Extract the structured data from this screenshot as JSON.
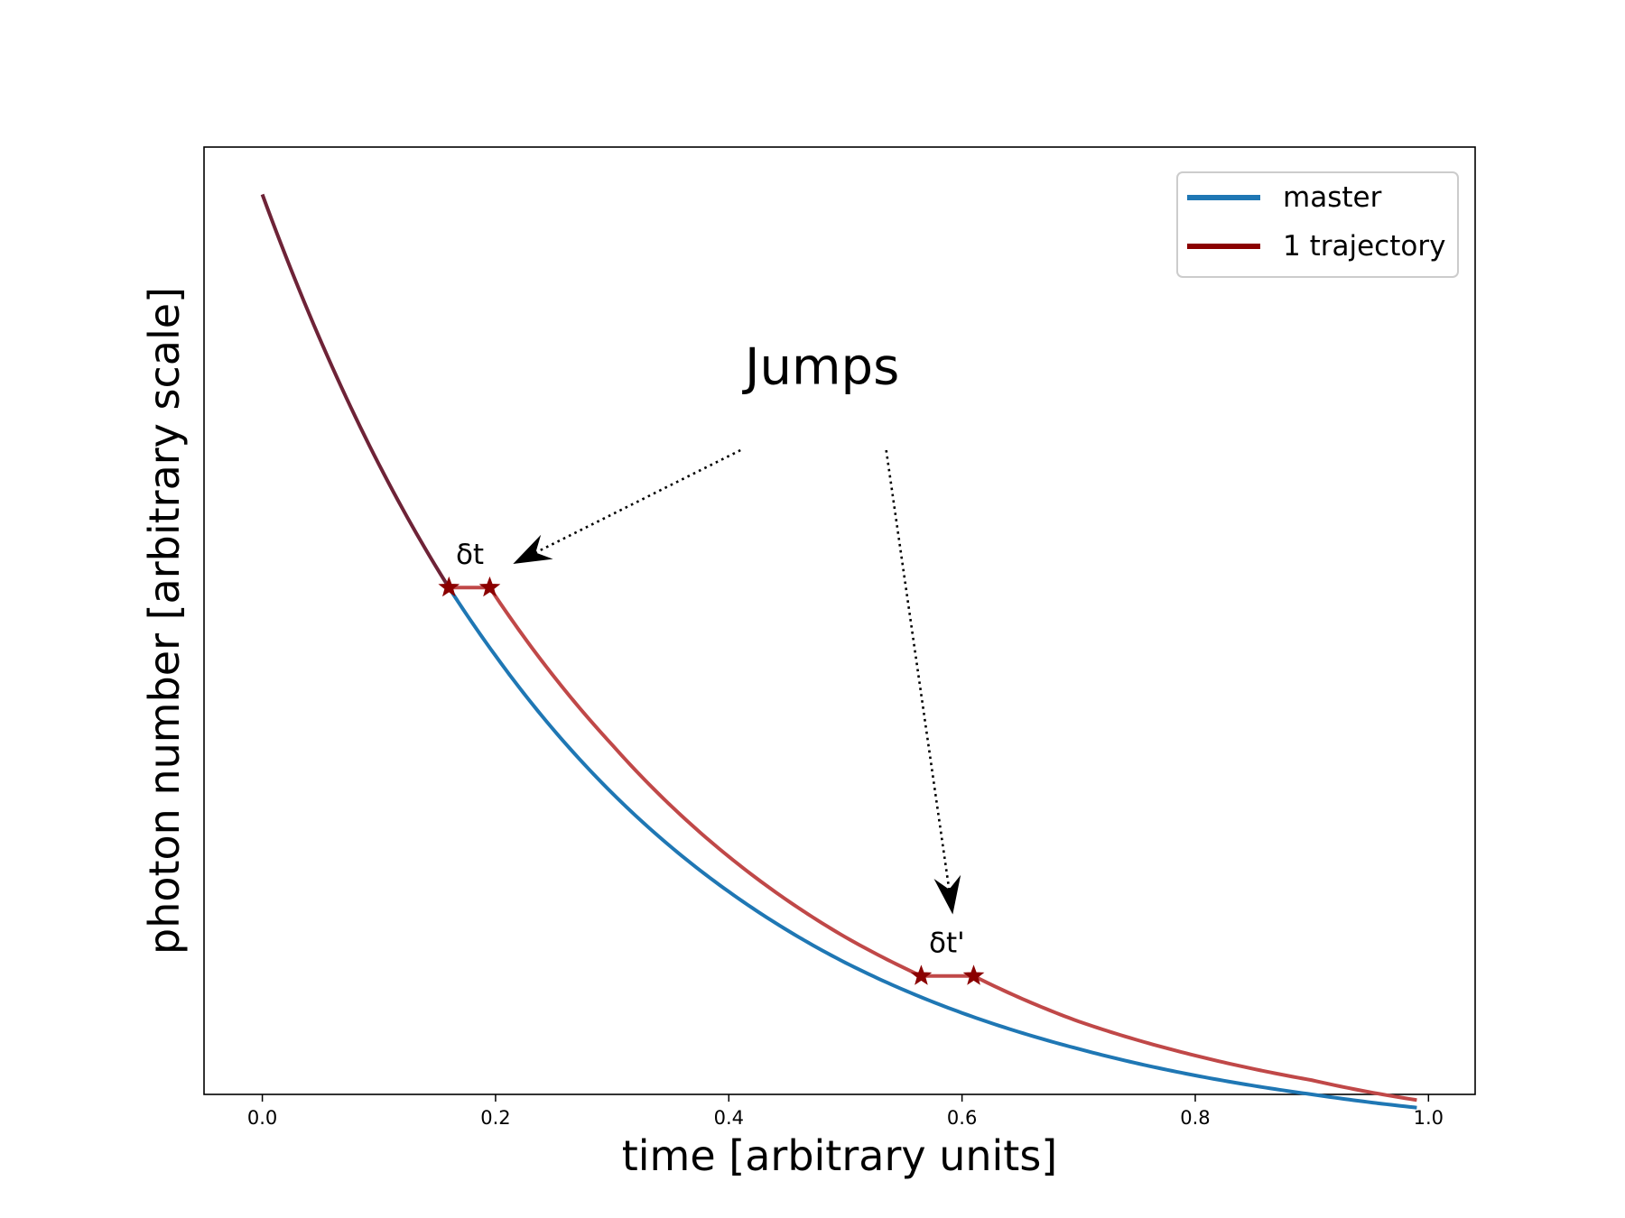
{
  "chart_data": {
    "type": "line",
    "xlabel": "time [arbitrary units]",
    "ylabel": "photon number [arbitrary scale]",
    "xlim": [
      -0.05,
      1.04
    ],
    "ylim": [
      0.05,
      1.05
    ],
    "xticks": [
      0.0,
      0.2,
      0.4,
      0.6,
      0.8,
      1.0
    ],
    "xtick_labels": [
      "0.0",
      "0.2",
      "0.4",
      "0.6",
      "0.8",
      "1.0"
    ],
    "yticks_shown": false,
    "grid": false,
    "legend_position": "top-right",
    "series": [
      {
        "name": "master",
        "color": "#1f77b4",
        "x": [
          0.0,
          0.1,
          0.16,
          0.2,
          0.3,
          0.4,
          0.5,
          0.6,
          0.7,
          0.8,
          0.9,
          0.99
        ],
        "y": [
          1.0,
          0.715,
          0.585,
          0.513,
          0.368,
          0.264,
          0.189,
          0.136,
          0.098,
          0.07,
          0.05,
          0.036
        ]
      },
      {
        "name": "1 trajectory",
        "color": "#8b0000",
        "x": [
          0.0,
          0.1,
          0.16,
          0.195,
          0.3,
          0.4,
          0.5,
          0.565,
          0.61,
          0.7,
          0.8,
          0.9,
          0.99
        ],
        "y": [
          1.0,
          0.715,
          0.585,
          0.585,
          0.419,
          0.301,
          0.216,
          0.175,
          0.175,
          0.127,
          0.091,
          0.065,
          0.044
        ]
      }
    ],
    "markers": [
      {
        "x": 0.16,
        "y": 0.585,
        "shape": "star",
        "color": "#8b0000"
      },
      {
        "x": 0.195,
        "y": 0.585,
        "shape": "star",
        "color": "#8b0000"
      },
      {
        "x": 0.565,
        "y": 0.175,
        "shape": "star",
        "color": "#8b0000"
      },
      {
        "x": 0.61,
        "y": 0.175,
        "shape": "star",
        "color": "#8b0000"
      }
    ],
    "annotations": [
      {
        "text": "Jumps",
        "x": 0.48,
        "y": 0.8,
        "size": "large"
      },
      {
        "text": "δt",
        "x": 0.178,
        "y": 0.61,
        "size": "small"
      },
      {
        "text": "δt'",
        "x": 0.587,
        "y": 0.2,
        "size": "small"
      }
    ],
    "arrows": [
      {
        "from": [
          0.41,
          0.73
        ],
        "to": [
          0.215,
          0.61
        ]
      },
      {
        "from": [
          0.535,
          0.73
        ],
        "to": [
          0.592,
          0.24
        ]
      }
    ]
  },
  "colors": {
    "master": "#1f77b4",
    "trajectory": "#c04848",
    "overlap": "#6e2337",
    "marker": "#8b0000"
  }
}
